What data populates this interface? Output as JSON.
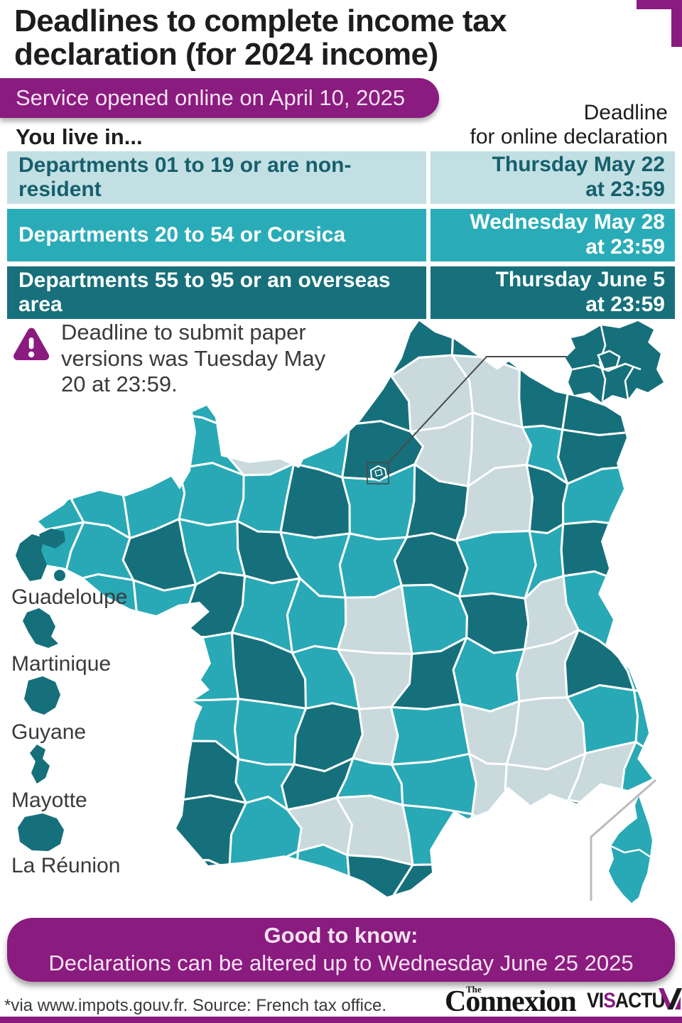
{
  "header": {
    "title_line1": "Deadlines to complete income tax",
    "title_line2": "declaration (for 2024 income)",
    "opened_banner": "Service opened online on April 10, 2025",
    "col_left_label": "You live in...",
    "col_right_label_line1": "Deadline",
    "col_right_label_line2": "for online declaration"
  },
  "table": {
    "rows": [
      {
        "zone": "Departments 01 to 19 or are non-resident",
        "deadline_line1": "Thursday May 22",
        "deadline_line2": "at 23:59",
        "shade": "light"
      },
      {
        "zone": "Departments 20 to 54 or Corsica",
        "deadline_line1": "Wednesday May 28",
        "deadline_line2": "at 23:59",
        "shade": "medium"
      },
      {
        "zone": "Departments 55 to 95 or an overseas area",
        "deadline_line1": "Thursday June 5",
        "deadline_line2": "at 23:59",
        "shade": "dark"
      }
    ]
  },
  "warning": {
    "text": "Deadline to submit paper versions was Tuesday May 20 at 23:59."
  },
  "map": {
    "colors": {
      "light": "#c9d9dc",
      "medium": "#29a9b5",
      "dark": "#16707b"
    },
    "pattern": [
      "MMMMMMDDDDDD",
      "MMMMDDDLLDDD",
      "MMMMLMDLLMDD",
      "MMMMMDMDLDMD",
      "MMDMDMMDMMDD",
      "MMMDMMLMDLMD",
      "MMMMDMLDMLDM",
      "MMMMMDLMLLMM",
      "MMMDMDMMLLLM",
      "MMMDMLLMMLDM",
      "MMDDMMDDMMMM"
    ],
    "overseas_labels": [
      "Guadeloupe",
      "Martinique",
      "Guyane",
      "Mayotte",
      "La Réunion"
    ]
  },
  "good_to_know": {
    "title": "Good to know:",
    "text": "Declarations can be altered up to Wednesday June 25 2025"
  },
  "footer": {
    "source": "*via www.impots.gouv.fr. Source: French tax office.",
    "logo_the": "The",
    "logo_connexion": "Connexion",
    "logo_visactu_a": "VI",
    "logo_visactu_b": "S",
    "logo_visactu_c": "ACTU"
  },
  "chart_data": {
    "type": "choropleth-map + table",
    "title": "Deadlines to complete income tax declaration (for 2024 income)",
    "service_opened": "April 10, 2025",
    "paper_deadline": "Tuesday May 20 at 23:59",
    "amendment_deadline": "Wednesday June 25 2025",
    "groups": [
      {
        "zone": "Departments 01 to 19 or are non-resident",
        "deadline": "Thursday May 22 at 23:59",
        "color": "#c9d9dc"
      },
      {
        "zone": "Departments 20 to 54 or Corsica",
        "deadline": "Wednesday May 28 at 23:59",
        "color": "#29a9b5"
      },
      {
        "zone": "Departments 55 to 95 or an overseas area",
        "deadline": "Thursday June 5 at 23:59",
        "color": "#16707b"
      }
    ],
    "overseas_areas": [
      "Guadeloupe",
      "Martinique",
      "Guyane",
      "Mayotte",
      "La Réunion"
    ],
    "source": "via www.impots.gouv.fr. Source: French tax office."
  }
}
